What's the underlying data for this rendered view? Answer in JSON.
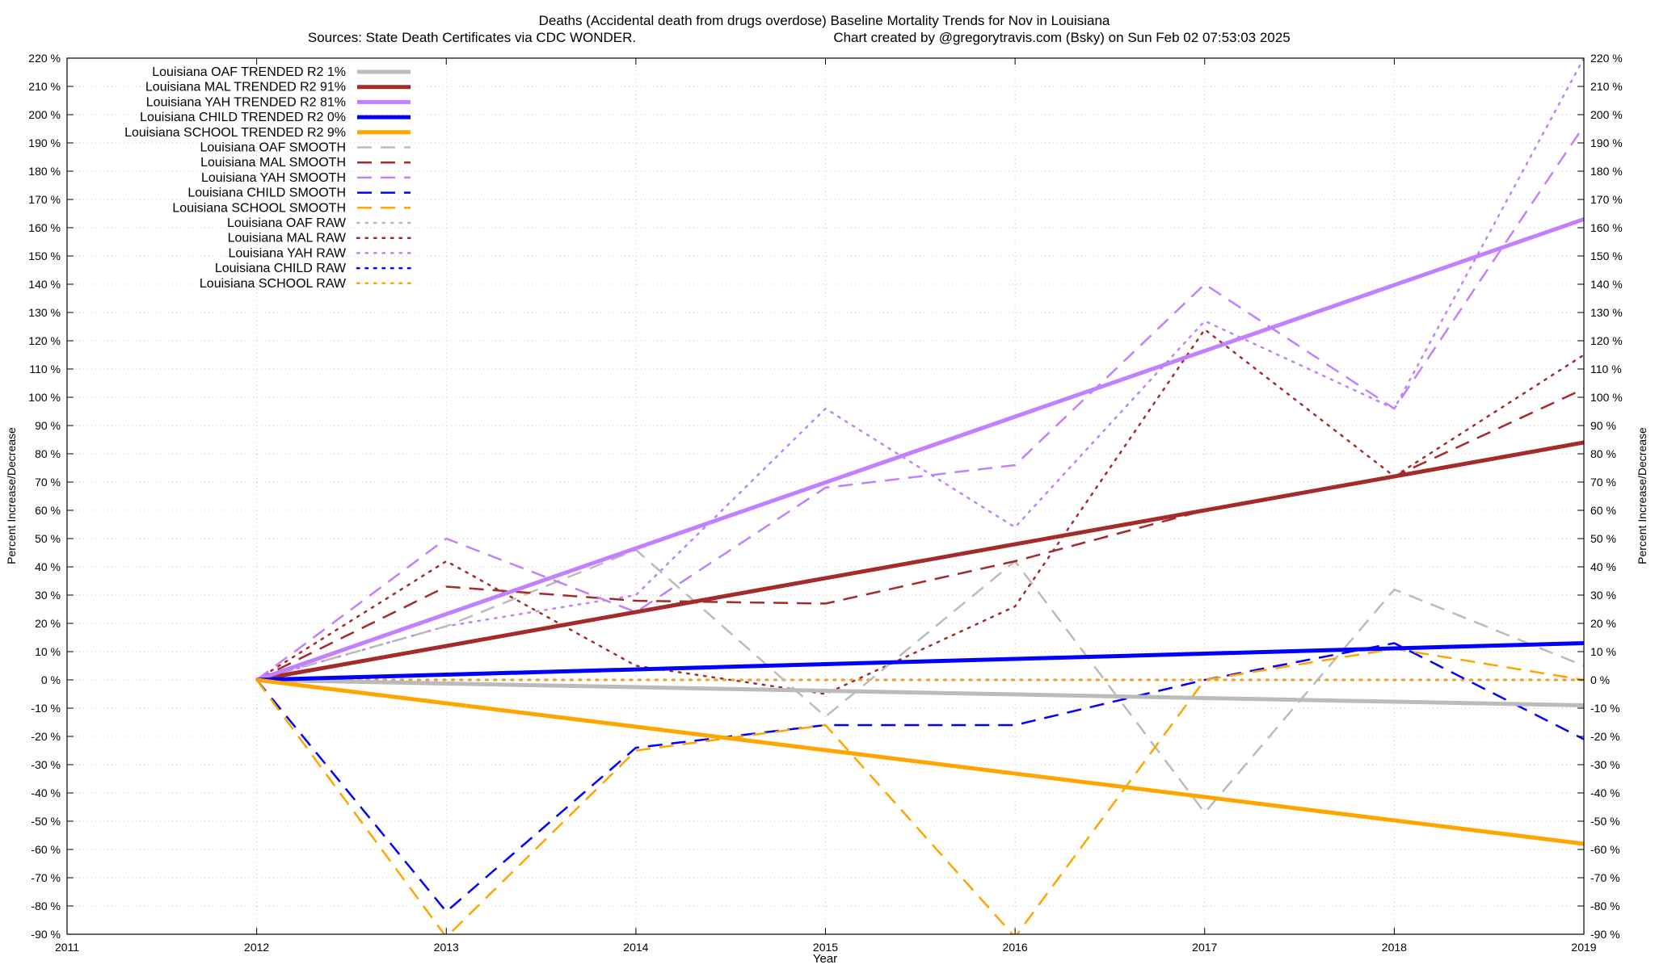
{
  "chart_data": {
    "type": "line",
    "title_line1": "Deaths (Accidental death from drugs overdose)  Baseline Mortality Trends for Nov in Louisiana",
    "title_line2_left": "Sources: State Death Certificates via CDC WONDER.",
    "title_line2_right": "Chart created by @gregorytravis.com (Bsky) on Sun Feb 02 07:53:03 2025",
    "xlabel": "Year",
    "ylabel": "Percent Increase/Decrease",
    "xlim": [
      2011,
      2019
    ],
    "ylim": [
      -90,
      220
    ],
    "x_ticks": [
      2011,
      2012,
      2013,
      2014,
      2015,
      2016,
      2017,
      2018,
      2019
    ],
    "y_ticks": [
      -90,
      -80,
      -70,
      -60,
      -50,
      -40,
      -30,
      -20,
      -10,
      0,
      10,
      20,
      30,
      40,
      50,
      60,
      70,
      80,
      90,
      100,
      110,
      120,
      130,
      140,
      150,
      160,
      170,
      180,
      190,
      200,
      210,
      220
    ],
    "y_tick_suffix": " %",
    "grid": true,
    "legend_position": "top-left",
    "series": [
      {
        "name": "Louisiana OAF TRENDED R2  1%",
        "style": "solid",
        "color": "#bbbbbb",
        "x": [
          2012,
          2019
        ],
        "y": [
          0,
          -9
        ]
      },
      {
        "name": "Louisiana MAL TRENDED R2  91%",
        "style": "solid",
        "color": "#a52a2a",
        "x": [
          2012,
          2019
        ],
        "y": [
          0,
          84
        ]
      },
      {
        "name": "Louisiana YAH TRENDED R2  81%",
        "style": "solid",
        "color": "#c080ff",
        "x": [
          2012,
          2019
        ],
        "y": [
          0,
          163
        ]
      },
      {
        "name": "Louisiana CHILD TRENDED R2   0%",
        "style": "solid",
        "color": "#0000ff",
        "x": [
          2012,
          2019
        ],
        "y": [
          0,
          13
        ]
      },
      {
        "name": "Louisiana SCHOOL TRENDED R2   9%",
        "style": "solid",
        "color": "#ffa500",
        "x": [
          2012,
          2019
        ],
        "y": [
          0,
          -58
        ]
      },
      {
        "name": "Louisiana OAF SMOOTH",
        "style": "dashed",
        "color": "#bbbbbb",
        "x": [
          2012,
          2013,
          2014,
          2015,
          2016,
          2017,
          2018,
          2019
        ],
        "y": [
          0,
          19,
          46,
          -13,
          42,
          -47,
          32,
          5
        ]
      },
      {
        "name": "Louisiana MAL SMOOTH",
        "style": "dashed",
        "color": "#a52a2a",
        "x": [
          2012,
          2013,
          2014,
          2015,
          2016,
          2017,
          2018,
          2019
        ],
        "y": [
          0,
          33,
          28,
          27,
          42,
          60,
          72,
          103
        ]
      },
      {
        "name": "Louisiana YAH SMOOTH",
        "style": "dashed",
        "color": "#c080ff",
        "x": [
          2012,
          2013,
          2014,
          2015,
          2016,
          2017,
          2018,
          2019
        ],
        "y": [
          0,
          50,
          24,
          68,
          76,
          140,
          96,
          196
        ]
      },
      {
        "name": "Louisiana CHILD SMOOTH",
        "style": "dashed",
        "color": "#0000ff",
        "x": [
          2012,
          2013,
          2014,
          2015,
          2016,
          2017,
          2018,
          2019
        ],
        "y": [
          0,
          -82,
          -24,
          -16,
          -16,
          0,
          13,
          -21
        ]
      },
      {
        "name": "Louisiana SCHOOL SMOOTH",
        "style": "dashed",
        "color": "#ffa500",
        "x": [
          2012,
          2013,
          2014,
          2015,
          2016,
          2017,
          2018,
          2019
        ],
        "y": [
          0,
          -91,
          -25,
          -16,
          -91,
          0,
          11,
          0
        ]
      },
      {
        "name": "Louisiana OAF RAW",
        "style": "dotted",
        "color": "#bbbbbb",
        "x": [
          2012,
          2019
        ],
        "y": [
          0,
          0
        ]
      },
      {
        "name": "Louisiana MAL RAW",
        "style": "dotted",
        "color": "#a52a2a",
        "x": [
          2012,
          2013,
          2014,
          2015,
          2016,
          2017,
          2018,
          2019
        ],
        "y": [
          0,
          42,
          5,
          -5,
          26,
          124,
          72,
          115
        ]
      },
      {
        "name": "Louisiana YAH RAW",
        "style": "dotted",
        "color": "#c080ff",
        "x": [
          2012,
          2013,
          2014,
          2015,
          2016,
          2017,
          2018,
          2019
        ],
        "y": [
          0,
          19,
          30,
          96,
          54,
          127,
          96,
          220
        ]
      },
      {
        "name": "Louisiana CHILD RAW",
        "style": "dotted",
        "color": "#0000ff",
        "x": [
          2012,
          2019
        ],
        "y": [
          0,
          0
        ]
      },
      {
        "name": "Louisiana SCHOOL RAW",
        "style": "dotted",
        "color": "#ffa500",
        "x": [
          2012,
          2019
        ],
        "y": [
          0,
          0
        ]
      }
    ]
  }
}
